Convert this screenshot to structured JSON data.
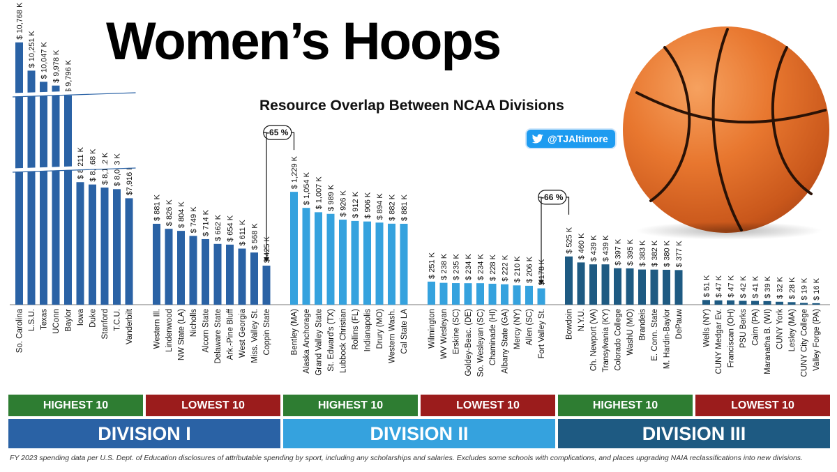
{
  "header": {
    "title": "Women’s Hoops",
    "subtitle": "Resource Overlap Between NCAA Divisions",
    "handle": "@TJAltimore",
    "handle_icon": "twitter-bird-icon"
  },
  "colors": {
    "division_1": "#2a62a5",
    "division_2": "#35a2de",
    "division_3": "#1e5a82",
    "highest": "#2e7d32",
    "lowest": "#9b1c1c"
  },
  "chart_data": {
    "type": "bar",
    "value_unit": "$ K",
    "notes": [
      {
        "text": "-65 %",
        "from": "Coppin State",
        "to": "Bentley (MA)"
      },
      {
        "text": "-66 %",
        "from": "Fort Valley St.",
        "to": "Bowdoin"
      }
    ],
    "groups": [
      {
        "division": "DIVISION I",
        "tier": "HIGHEST 10",
        "color": "#2a62a5",
        "broken_axis": true,
        "bars": [
          {
            "label": "So. Carolina",
            "value": 10768,
            "display": "$ 10,768 K"
          },
          {
            "label": "L.S.U.",
            "value": 10251,
            "display": "$ 10,251 K"
          },
          {
            "label": "Texas",
            "value": 10047,
            "display": "$ 10,047 K"
          },
          {
            "label": "UConn",
            "value": 9978,
            "display": "$ 9,978 K"
          },
          {
            "label": "Baylor",
            "value": 9796,
            "display": "$ 9,796 K"
          },
          {
            "label": "Iowa",
            "value": 8211,
            "display": "$ 8,211 K"
          },
          {
            "label": "Duke",
            "value": 8168,
            "display": "$ 8,168 K"
          },
          {
            "label": "Stanford",
            "value": 8112,
            "display": "$ 8,112 K"
          },
          {
            "label": "T.C.U.",
            "value": 8083,
            "display": "$ 8,083 K"
          },
          {
            "label": "Vanderbilt",
            "value": 7916,
            "display": "$7,916 K"
          }
        ]
      },
      {
        "division": "DIVISION I",
        "tier": "LOWEST 10",
        "color": "#2a62a5",
        "bars": [
          {
            "label": "Western Ill.",
            "value": 881,
            "display": "$ 881 K"
          },
          {
            "label": "Lindenwood",
            "value": 826,
            "display": "$ 826 K"
          },
          {
            "label": "NW State (LA)",
            "value": 804,
            "display": "$ 804 K"
          },
          {
            "label": "Nicholls",
            "value": 749,
            "display": "$ 749 K"
          },
          {
            "label": "Alcorn State",
            "value": 714,
            "display": "$ 714 K"
          },
          {
            "label": "Delaware State",
            "value": 662,
            "display": "$ 662 K"
          },
          {
            "label": "Ark.-Pine Bluff",
            "value": 654,
            "display": "$ 654 K"
          },
          {
            "label": "West Georgia",
            "value": 611,
            "display": "$ 611 K"
          },
          {
            "label": "Miss. Valley St.",
            "value": 568,
            "display": "$ 568 K"
          },
          {
            "label": "Coppin State",
            "value": 425,
            "display": "$ 425 K"
          }
        ]
      },
      {
        "division": "DIVISION II",
        "tier": "HIGHEST 10",
        "color": "#35a2de",
        "bars": [
          {
            "label": "Bentley (MA)",
            "value": 1229,
            "display": "$ 1,229 K"
          },
          {
            "label": "Alaska Anchorage",
            "value": 1054,
            "display": "$ 1,054 K"
          },
          {
            "label": "Grand Valley State",
            "value": 1007,
            "display": "$ 1,007 K"
          },
          {
            "label": "St. Edward's (TX)",
            "value": 989,
            "display": "$ 989 K"
          },
          {
            "label": "Lubbock Christian",
            "value": 926,
            "display": "$ 926 K"
          },
          {
            "label": "Rollins (FL)",
            "value": 912,
            "display": "$ 912 K"
          },
          {
            "label": "Indianapolis",
            "value": 906,
            "display": "$ 906 K"
          },
          {
            "label": "Drury (MO)",
            "value": 894,
            "display": "$ 894 K"
          },
          {
            "label": "Western Wash.",
            "value": 882,
            "display": "$ 882 K"
          },
          {
            "label": "Cal State LA",
            "value": 881,
            "display": "$ 881 K"
          }
        ]
      },
      {
        "division": "DIVISION II",
        "tier": "LOWEST 10",
        "color": "#35a2de",
        "bars": [
          {
            "label": "Wilmington",
            "value": 251,
            "display": "$ 251 K"
          },
          {
            "label": "WV Wesleyan",
            "value": 238,
            "display": "$ 238 K"
          },
          {
            "label": "Erskine (SC)",
            "value": 235,
            "display": "$ 235 K"
          },
          {
            "label": "Goldey-Beac. (DE)",
            "value": 234,
            "display": "$ 234 K"
          },
          {
            "label": "So. Wesleyan (SC)",
            "value": 234,
            "display": "$ 234 K"
          },
          {
            "label": "Chaminade (HI)",
            "value": 228,
            "display": "$ 228 K"
          },
          {
            "label": "Albany State (GA)",
            "value": 222,
            "display": "$ 222 K"
          },
          {
            "label": "Mercy (NY)",
            "value": 210,
            "display": "$ 210 K"
          },
          {
            "label": "Allen (SC)",
            "value": 206,
            "display": "$ 206 K"
          },
          {
            "label": "Fort Valley St.",
            "value": 178,
            "display": "$ 178 K"
          }
        ]
      },
      {
        "division": "DIVISION III",
        "tier": "HIGHEST 10",
        "color": "#1e5a82",
        "bars": [
          {
            "label": "Bowdoin",
            "value": 525,
            "display": "$ 525 K"
          },
          {
            "label": "N.Y.U.",
            "value": 460,
            "display": "$ 460 K"
          },
          {
            "label": "Ch. Newport (VA)",
            "value": 439,
            "display": "$ 439 K"
          },
          {
            "label": "Transylvania (KY)",
            "value": 439,
            "display": "$ 439 K"
          },
          {
            "label": "Colorado College",
            "value": 397,
            "display": "$ 397 K"
          },
          {
            "label": "WashU (MO)",
            "value": 395,
            "display": "$ 395 K"
          },
          {
            "label": "Brandeis",
            "value": 383,
            "display": "$ 383 K"
          },
          {
            "label": "E. Conn. State",
            "value": 382,
            "display": "$ 382 K"
          },
          {
            "label": "M. Hardin-Baylor",
            "value": 380,
            "display": "$ 380 K"
          },
          {
            "label": "DePauw",
            "value": 377,
            "display": "$ 377 K"
          }
        ]
      },
      {
        "division": "DIVISION III",
        "tier": "LOWEST 10",
        "color": "#1e5a82",
        "bars": [
          {
            "label": "Wells (NY)",
            "value": 51,
            "display": "$ 51 K"
          },
          {
            "label": "CUNY Medgar Ev.",
            "value": 47,
            "display": "$ 47 K"
          },
          {
            "label": "Franciscan (OH)",
            "value": 47,
            "display": "$ 47 K"
          },
          {
            "label": "PSU Berks",
            "value": 42,
            "display": "$ 42 K"
          },
          {
            "label": "Cairn (PA)",
            "value": 41,
            "display": "$ 41 K"
          },
          {
            "label": "Maranatha B. (WI)",
            "value": 39,
            "display": "$ 39 K"
          },
          {
            "label": "CUNY York",
            "value": 32,
            "display": "$ 32 K"
          },
          {
            "label": "Lesley (MA)",
            "value": 28,
            "display": "$ 28 K"
          },
          {
            "label": "CUNY City College",
            "value": 19,
            "display": "$ 19 K"
          },
          {
            "label": "Valley Forge (PA)",
            "value": 16,
            "display": "$ 16 K"
          }
        ]
      }
    ]
  },
  "legend_bands": {
    "tiers": [
      "HIGHEST 10",
      "LOWEST 10",
      "HIGHEST 10",
      "LOWEST 10",
      "HIGHEST 10",
      "LOWEST 10"
    ],
    "divisions": [
      "DIVISION I",
      "DIVISION II",
      "DIVISION III"
    ]
  },
  "footnote": "FY 2023 spending data per U.S. Dept. of Education disclosures of attributable spending by sport, including any scholarships and salaries.  Excludes some schools with complications, and places upgrading NAIA reclassifications into new divisions."
}
